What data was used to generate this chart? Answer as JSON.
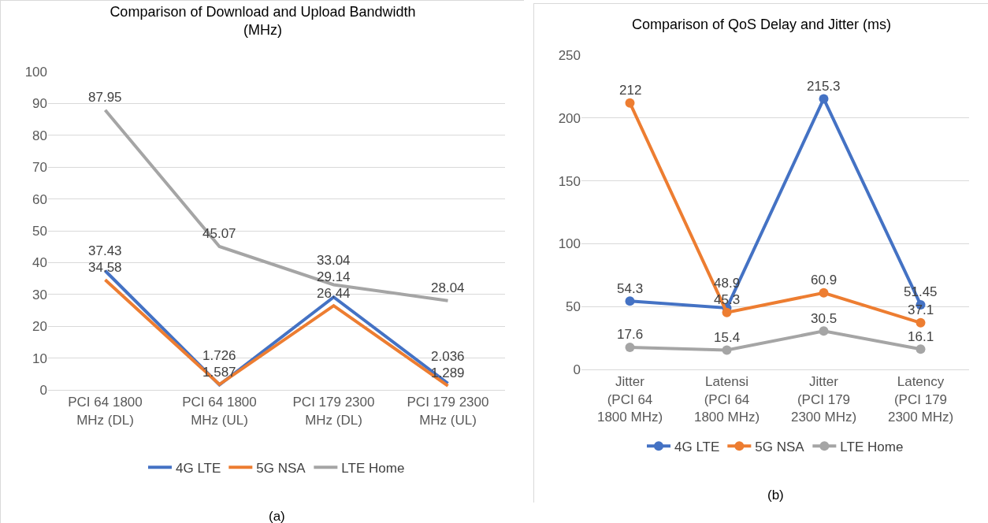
{
  "chart_data": [
    {
      "type": "line",
      "title": "Comparison of Download and Upload Bandwidth\n(MHz)",
      "categories": [
        "PCI 64 1800 MHz (DL)",
        "PCI 64 1800 MHz (UL)",
        "PCI 179 2300 MHz (DL)",
        "PCI 179 2300 MHz (UL)"
      ],
      "series": [
        {
          "name": "4G LTE",
          "color": "#4472c4",
          "values": [
            37.43,
            1.587,
            29.14,
            2.036
          ]
        },
        {
          "name": "5G NSA",
          "color": "#ed7d31",
          "values": [
            34.58,
            1.726,
            26.44,
            1.289
          ]
        },
        {
          "name": "LTE Home",
          "color": "#a5a5a5",
          "values": [
            87.95,
            45.07,
            33.04,
            28.04
          ]
        }
      ],
      "ylim": [
        0,
        100
      ],
      "yticks": [
        0,
        10,
        20,
        30,
        40,
        50,
        60,
        70,
        80,
        90,
        100
      ],
      "grid": "y",
      "legend": "bottom",
      "marker": "none",
      "line_style": "solid",
      "data_labels": true,
      "annotations": [
        "(a)"
      ]
    },
    {
      "type": "line",
      "title": "Comparison of QoS Delay and Jitter (ms)",
      "categories": [
        "Jitter (PCI 64 1800 MHz)",
        "Latensi (PCI 64 1800 MHz)",
        "Jitter (PCI 179 2300 MHz)",
        "Latency (PCI 179 2300 MHz)"
      ],
      "series": [
        {
          "name": "4G LTE",
          "color": "#4472c4",
          "values": [
            54.3,
            48.9,
            215.3,
            51.45
          ]
        },
        {
          "name": "5G NSA",
          "color": "#ed7d31",
          "values": [
            212,
            45.3,
            60.9,
            37.1
          ]
        },
        {
          "name": "LTE Home",
          "color": "#a5a5a5",
          "values": [
            17.6,
            15.4,
            30.5,
            16.1
          ]
        }
      ],
      "ylim": [
        0,
        250
      ],
      "yticks": [
        0,
        50,
        100,
        150,
        200,
        250
      ],
      "grid": "y",
      "legend": "bottom",
      "marker": "circle",
      "line_style": "solid",
      "data_labels": true,
      "annotations": [
        "(b)"
      ]
    }
  ]
}
